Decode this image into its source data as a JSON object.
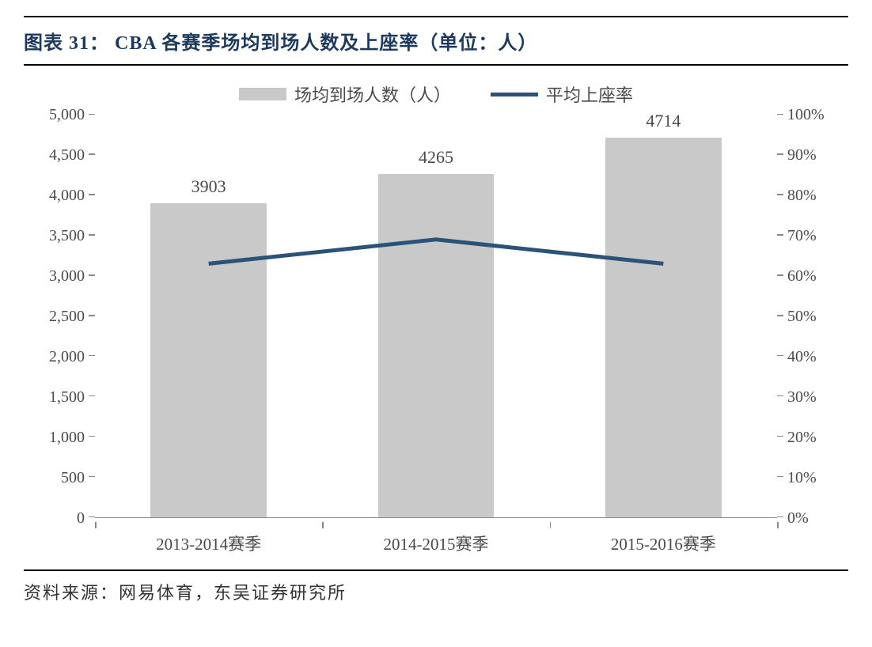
{
  "title": "图表 31：  CBA 各赛季场均到场人数及上座率（单位：人）",
  "legend": {
    "bar_label": "场均到场人数（人）",
    "line_label": "平均上座率"
  },
  "chart": {
    "type": "bar+line",
    "categories": [
      "2013-2014赛季",
      "2014-2015赛季",
      "2015-2016赛季"
    ],
    "bar_values": [
      3903,
      4265,
      4714
    ],
    "bar_labels": [
      "3903",
      "4265",
      "4714"
    ],
    "bar_color": "#c9c9c9",
    "bar_width_pct": 17,
    "line_values_pct": [
      63,
      69,
      63
    ],
    "line_color": "#2b5278",
    "line_width": 5,
    "y_left": {
      "min": 0,
      "max": 5000,
      "step": 500,
      "ticks": [
        "0",
        "500",
        "1,000",
        "1,500",
        "2,000",
        "2,500",
        "3,000",
        "3,500",
        "4,000",
        "4,500",
        "5,000"
      ]
    },
    "y_right": {
      "min": 0,
      "max": 100,
      "step": 10,
      "ticks": [
        "0%",
        "10%",
        "20%",
        "30%",
        "40%",
        "50%",
        "60%",
        "70%",
        "80%",
        "90%",
        "100%"
      ]
    },
    "background_color": "#ffffff",
    "axis_color": "#888888",
    "text_color": "#4a4a4a",
    "label_fontsize": 20,
    "title_color": "#1c3a5e",
    "title_fontsize": 24
  },
  "source": "资料来源：网易体育，东吴证券研究所"
}
